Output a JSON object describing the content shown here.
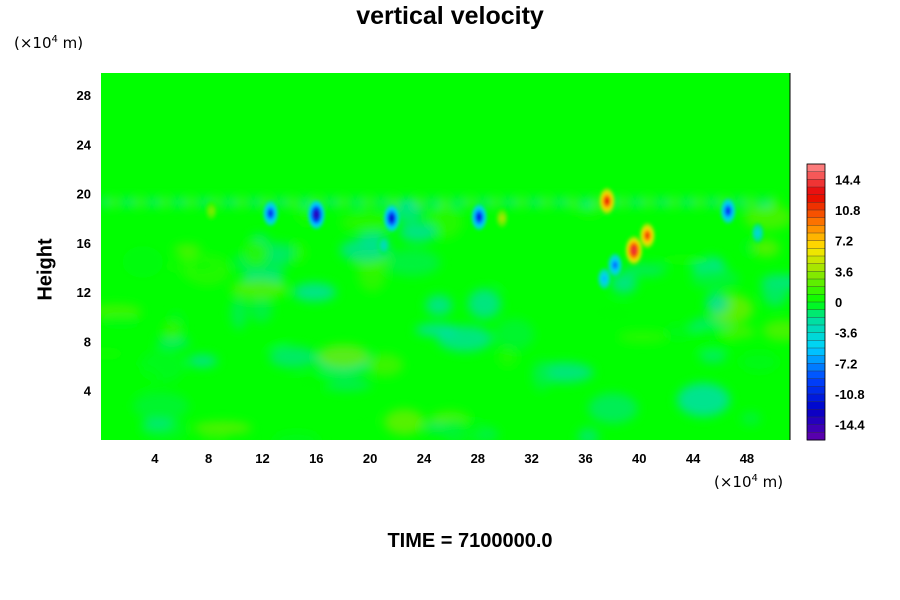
{
  "chart_data": {
    "type": "heatmap",
    "title": "vertical velocity",
    "ylabel": "Height",
    "xunit": {
      "prefix": "(×10",
      "exp": "4",
      "suffix": " m)"
    },
    "yunit": {
      "prefix": "(×10",
      "exp": "4",
      "suffix": " m)"
    },
    "xlim": [
      0,
      51.2
    ],
    "ylim": [
      0,
      29.8
    ],
    "xticks": [
      "4",
      "8",
      "12",
      "16",
      "20",
      "24",
      "28",
      "32",
      "36",
      "40",
      "44",
      "48"
    ],
    "yticks": [
      "4",
      "8",
      "12",
      "16",
      "20",
      "24",
      "28"
    ],
    "colorbar": {
      "labels": [
        "14.4",
        "10.8",
        "7.2",
        "3.6",
        "0",
        "-3.6",
        "-7.2",
        "-10.8",
        "-14.4"
      ],
      "range": [
        -16.2,
        16.2
      ],
      "levels": 36
    },
    "background_value": 0,
    "features": [
      {
        "name": "updraft-cluster",
        "x": 39.6,
        "y": 15.4,
        "value": 14
      },
      {
        "name": "updraft-secondary",
        "x": 40.6,
        "y": 16.6,
        "value": 11
      },
      {
        "name": "updraft-top",
        "x": 37.6,
        "y": 19.4,
        "value": 12
      },
      {
        "name": "downdraft-16",
        "x": 16.0,
        "y": 18.3,
        "value": -14
      },
      {
        "name": "downdraft-22",
        "x": 21.6,
        "y": 18.0,
        "value": -12
      },
      {
        "name": "downdraft-13",
        "x": 12.6,
        "y": 18.4,
        "value": -10
      },
      {
        "name": "downdraft-28",
        "x": 28.1,
        "y": 18.1,
        "value": -11
      },
      {
        "name": "downdraft-47",
        "x": 46.6,
        "y": 18.6,
        "value": -10
      },
      {
        "name": "downdraft-38",
        "x": 38.2,
        "y": 14.2,
        "value": -8
      },
      {
        "name": "downdraft-37",
        "x": 37.4,
        "y": 13.1,
        "value": -6
      },
      {
        "name": "weak-up-30",
        "x": 29.8,
        "y": 18.0,
        "value": 4
      },
      {
        "name": "weak-up-8",
        "x": 8.2,
        "y": 18.6,
        "value": 3
      },
      {
        "name": "weak-down-48",
        "x": 48.8,
        "y": 16.8,
        "value": -4
      },
      {
        "name": "weak-down-21",
        "x": 21.0,
        "y": 15.8,
        "value": -3
      }
    ],
    "time_label": "TIME = 7100000.0"
  }
}
